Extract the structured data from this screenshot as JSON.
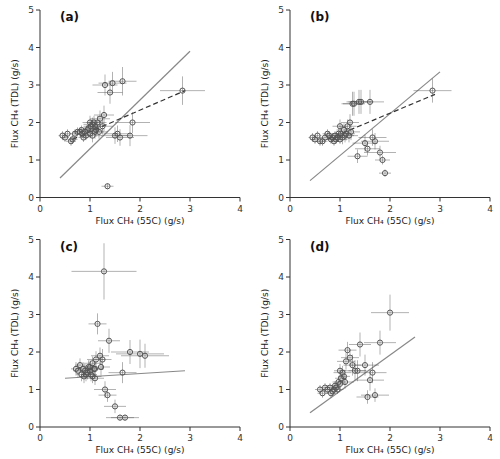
{
  "chart_data": [
    {
      "type": "scatter",
      "title": "(a)",
      "xlabel": "Flux CH₄ (55C) (g/s)",
      "ylabel": "Flux CH₄ (TDL) (g/s)",
      "xlim": [
        0,
        4
      ],
      "ylim": [
        0,
        5
      ],
      "xticks": [
        0,
        1,
        2,
        3,
        4
      ],
      "yticks": [
        0,
        1,
        2,
        3,
        4,
        5
      ],
      "series": [
        {
          "type": "scatter",
          "marker": "circle",
          "color": "#555555",
          "x": [
            0.45,
            0.5,
            0.55,
            0.62,
            0.65,
            0.7,
            0.75,
            0.8,
            0.83,
            0.85,
            0.87,
            0.9,
            0.92,
            0.95,
            0.97,
            1.0,
            1.0,
            1.02,
            1.05,
            1.05,
            1.08,
            1.1,
            1.1,
            1.12,
            1.15,
            1.18,
            1.2,
            1.25,
            1.28,
            1.3,
            1.35,
            1.4,
            1.45,
            1.5,
            1.55,
            1.6,
            1.65,
            1.8,
            1.85,
            2.85
          ],
          "values": [
            1.65,
            1.6,
            1.7,
            1.5,
            1.55,
            1.7,
            1.75,
            1.75,
            1.8,
            1.7,
            1.6,
            1.75,
            1.65,
            1.8,
            1.85,
            1.7,
            2.0,
            1.9,
            1.65,
            1.95,
            2.0,
            1.75,
            1.9,
            1.8,
            2.0,
            1.75,
            2.1,
            1.9,
            2.2,
            3.0,
            0.3,
            2.8,
            3.05,
            1.65,
            1.7,
            1.6,
            3.1,
            1.65,
            2.0,
            2.85
          ],
          "xerr": [
            0.08,
            0.08,
            0.08,
            0.1,
            0.1,
            0.1,
            0.1,
            0.1,
            0.1,
            0.1,
            0.1,
            0.12,
            0.12,
            0.12,
            0.12,
            0.15,
            0.15,
            0.15,
            0.18,
            0.18,
            0.15,
            0.18,
            0.18,
            0.18,
            0.18,
            0.18,
            0.2,
            0.2,
            0.2,
            0.25,
            0.12,
            0.25,
            0.28,
            0.28,
            0.28,
            0.28,
            0.28,
            0.35,
            0.35,
            0.45
          ],
          "yerr": [
            0.12,
            0.12,
            0.12,
            0.12,
            0.12,
            0.12,
            0.12,
            0.12,
            0.12,
            0.12,
            0.12,
            0.12,
            0.12,
            0.12,
            0.12,
            0.12,
            0.18,
            0.18,
            0.18,
            0.18,
            0.18,
            0.18,
            0.18,
            0.18,
            0.18,
            0.18,
            0.22,
            0.22,
            0.25,
            0.28,
            0.08,
            0.3,
            0.3,
            0.22,
            0.22,
            0.22,
            0.38,
            0.28,
            0.28,
            0.38
          ]
        },
        {
          "type": "line",
          "line_style": "solid",
          "color": "#888888",
          "x": [
            0.4,
            3.0
          ],
          "values": [
            0.52,
            3.9
          ]
        },
        {
          "type": "line",
          "line_style": "dashed",
          "color": "#333333",
          "x": [
            0.65,
            2.9
          ],
          "values": [
            1.55,
            2.85
          ]
        }
      ]
    },
    {
      "type": "scatter",
      "title": "(b)",
      "xlabel": "Flux CH₄ (55C) (g/s)",
      "ylabel": "Flux CH₄ (TDL) (g/s)",
      "xlim": [
        0,
        4
      ],
      "ylim": [
        0,
        5
      ],
      "xticks": [
        0,
        1,
        2,
        3,
        4
      ],
      "yticks": [
        0,
        1,
        2,
        3,
        4,
        5
      ],
      "series": [
        {
          "type": "scatter",
          "marker": "circle",
          "color": "#555555",
          "x": [
            0.45,
            0.5,
            0.55,
            0.6,
            0.65,
            0.7,
            0.75,
            0.78,
            0.82,
            0.85,
            0.88,
            0.9,
            0.92,
            0.95,
            0.97,
            1.0,
            1.0,
            1.02,
            1.05,
            1.08,
            1.1,
            1.12,
            1.15,
            1.18,
            1.2,
            1.22,
            1.25,
            1.28,
            1.35,
            1.38,
            1.42,
            1.5,
            1.55,
            1.6,
            1.65,
            1.7,
            1.8,
            1.85,
            1.9,
            2.85
          ],
          "values": [
            1.6,
            1.55,
            1.65,
            1.5,
            1.5,
            1.6,
            1.7,
            1.65,
            1.55,
            1.6,
            1.5,
            1.65,
            1.55,
            1.6,
            1.7,
            1.55,
            1.9,
            1.7,
            1.6,
            1.8,
            1.65,
            1.7,
            1.9,
            1.65,
            2.0,
            1.75,
            2.5,
            2.5,
            1.1,
            2.55,
            2.55,
            1.45,
            1.3,
            2.55,
            1.6,
            1.5,
            1.2,
            1.0,
            0.65,
            2.85
          ],
          "xerr": [
            0.08,
            0.08,
            0.08,
            0.1,
            0.1,
            0.1,
            0.1,
            0.1,
            0.1,
            0.1,
            0.1,
            0.12,
            0.12,
            0.12,
            0.12,
            0.15,
            0.15,
            0.15,
            0.18,
            0.15,
            0.18,
            0.18,
            0.18,
            0.18,
            0.18,
            0.18,
            0.22,
            0.22,
            0.2,
            0.25,
            0.25,
            0.25,
            0.25,
            0.28,
            0.28,
            0.28,
            0.32,
            0.15,
            0.12,
            0.38
          ],
          "yerr": [
            0.12,
            0.12,
            0.12,
            0.12,
            0.12,
            0.12,
            0.12,
            0.12,
            0.12,
            0.12,
            0.12,
            0.12,
            0.12,
            0.12,
            0.12,
            0.12,
            0.18,
            0.18,
            0.18,
            0.18,
            0.18,
            0.18,
            0.18,
            0.18,
            0.22,
            0.22,
            0.32,
            0.32,
            0.18,
            0.32,
            0.32,
            0.22,
            0.18,
            0.32,
            0.22,
            0.22,
            0.18,
            0.12,
            0.1,
            0.32
          ]
        },
        {
          "type": "line",
          "line_style": "solid",
          "color": "#888888",
          "x": [
            0.4,
            3.0
          ],
          "values": [
            0.45,
            3.35
          ]
        },
        {
          "type": "line",
          "line_style": "dashed",
          "color": "#333333",
          "x": [
            0.75,
            2.9
          ],
          "values": [
            1.55,
            2.75
          ]
        }
      ]
    },
    {
      "type": "scatter",
      "title": "(c)",
      "xlabel": "Flux CH₄ (55C) (g/s)",
      "ylabel": "Flux CH₄ (TDL) (g/s)",
      "xlim": [
        0,
        4
      ],
      "ylim": [
        0,
        5
      ],
      "xticks": [
        0,
        1,
        2,
        3,
        4
      ],
      "yticks": [
        0,
        1,
        2,
        3,
        4,
        5
      ],
      "series": [
        {
          "type": "scatter",
          "marker": "circle",
          "color": "#555555",
          "x": [
            0.72,
            0.76,
            0.8,
            0.83,
            0.86,
            0.88,
            0.9,
            0.92,
            0.95,
            0.97,
            1.0,
            1.0,
            1.02,
            1.05,
            1.05,
            1.08,
            1.1,
            1.1,
            1.12,
            1.15,
            1.2,
            1.22,
            1.25,
            1.3,
            1.35,
            1.38,
            1.5,
            1.6,
            1.65,
            1.7,
            1.8,
            2.0,
            2.1,
            1.28
          ],
          "values": [
            1.55,
            1.5,
            1.65,
            1.4,
            1.55,
            1.35,
            1.5,
            1.4,
            1.45,
            1.6,
            1.5,
            1.6,
            1.4,
            1.35,
            1.7,
            1.55,
            1.3,
            1.55,
            1.8,
            2.75,
            1.9,
            1.6,
            1.8,
            1.0,
            0.85,
            2.3,
            0.55,
            0.25,
            1.45,
            0.25,
            2.0,
            1.95,
            1.9,
            4.15
          ],
          "xerr": [
            0.1,
            0.1,
            0.1,
            0.1,
            0.1,
            0.1,
            0.1,
            0.1,
            0.12,
            0.12,
            0.12,
            0.12,
            0.12,
            0.18,
            0.18,
            0.12,
            0.18,
            0.18,
            0.18,
            0.18,
            0.18,
            0.18,
            0.18,
            0.22,
            0.18,
            0.22,
            0.22,
            0.28,
            0.28,
            0.28,
            0.38,
            0.48,
            0.48,
            0.65
          ],
          "yerr": [
            0.18,
            0.18,
            0.18,
            0.18,
            0.18,
            0.18,
            0.18,
            0.18,
            0.18,
            0.18,
            0.18,
            0.18,
            0.18,
            0.18,
            0.18,
            0.18,
            0.18,
            0.18,
            0.22,
            0.28,
            0.22,
            0.22,
            0.28,
            0.22,
            0.18,
            0.32,
            0.18,
            0.08,
            0.28,
            0.08,
            0.32,
            0.38,
            0.32,
            0.75
          ]
        },
        {
          "type": "line",
          "line_style": "solid",
          "color": "#888888",
          "x": [
            0.5,
            2.9
          ],
          "values": [
            1.3,
            1.5
          ]
        }
      ]
    },
    {
      "type": "scatter",
      "title": "(d)",
      "xlabel": "Flux CH₄ (55C) (g/s)",
      "ylabel": "Flux CH₄ (TDL) (g/s)",
      "xlim": [
        0,
        4
      ],
      "ylim": [
        0,
        5
      ],
      "xticks": [
        0,
        1,
        2,
        3,
        4
      ],
      "yticks": [
        0,
        1,
        2,
        3,
        4,
        5
      ],
      "series": [
        {
          "type": "scatter",
          "marker": "circle",
          "color": "#555555",
          "x": [
            0.6,
            0.65,
            0.7,
            0.75,
            0.8,
            0.82,
            0.85,
            0.88,
            0.9,
            0.92,
            0.95,
            0.97,
            1.0,
            1.0,
            1.02,
            1.05,
            1.08,
            1.1,
            1.12,
            1.15,
            1.2,
            1.25,
            1.3,
            1.35,
            1.4,
            1.5,
            1.55,
            1.6,
            1.65,
            1.7,
            1.8,
            2.0
          ],
          "values": [
            1.0,
            0.9,
            1.05,
            1.0,
            1.05,
            0.9,
            0.95,
            1.0,
            1.1,
            1.05,
            1.0,
            1.2,
            1.15,
            1.5,
            1.3,
            1.45,
            1.35,
            1.2,
            1.75,
            2.05,
            1.85,
            1.65,
            1.5,
            1.5,
            2.2,
            1.65,
            0.8,
            1.25,
            1.45,
            0.85,
            2.25,
            3.05
          ],
          "xerr": [
            0.1,
            0.1,
            0.1,
            0.1,
            0.1,
            0.1,
            0.1,
            0.1,
            0.1,
            0.1,
            0.12,
            0.12,
            0.12,
            0.12,
            0.12,
            0.18,
            0.12,
            0.18,
            0.18,
            0.18,
            0.18,
            0.18,
            0.22,
            0.18,
            0.22,
            0.28,
            0.22,
            0.28,
            0.28,
            0.28,
            0.32,
            0.38
          ],
          "yerr": [
            0.12,
            0.12,
            0.12,
            0.12,
            0.12,
            0.12,
            0.12,
            0.12,
            0.12,
            0.12,
            0.12,
            0.12,
            0.18,
            0.18,
            0.18,
            0.18,
            0.18,
            0.18,
            0.22,
            0.22,
            0.22,
            0.28,
            0.28,
            0.28,
            0.32,
            0.28,
            0.18,
            0.28,
            0.28,
            0.18,
            0.32,
            0.48
          ]
        },
        {
          "type": "line",
          "line_style": "solid",
          "color": "#888888",
          "x": [
            0.4,
            2.5
          ],
          "values": [
            0.38,
            2.4
          ]
        }
      ]
    }
  ]
}
